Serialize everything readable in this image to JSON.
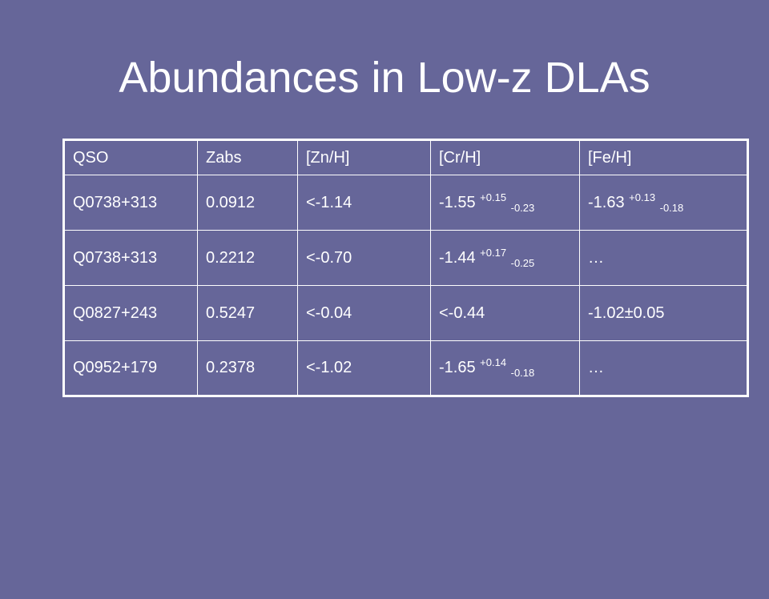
{
  "slide": {
    "title": "Abundances in Low-z DLAs"
  },
  "table": {
    "headers": [
      "QSO",
      "Zabs",
      "[Zn/H]",
      "[Cr/H]",
      "[Fe/H]"
    ],
    "rows": [
      {
        "qso": "Q0738+313",
        "zabs": "0.0912",
        "zn_h": "<-1.14",
        "cr_h": {
          "base": "-1.55",
          "sup": "+0.15",
          "sub": "-0.23"
        },
        "fe_h": {
          "base": "-1.63",
          "sup": "+0.13",
          "sub": "-0.18"
        }
      },
      {
        "qso": "Q0738+313",
        "zabs": "0.2212",
        "zn_h": "<-0.70",
        "cr_h": {
          "base": "-1.44",
          "sup": "+0.17",
          "sub": "-0.25"
        },
        "fe_h": {
          "base": "…"
        }
      },
      {
        "qso": "Q0827+243",
        "zabs": "0.5247",
        "zn_h": "<-0.04",
        "cr_h": {
          "base": "<-0.44"
        },
        "fe_h": {
          "base": "-1.02±0.05"
        }
      },
      {
        "qso": "Q0952+179",
        "zabs": "0.2378",
        "zn_h": "<-1.02",
        "cr_h": {
          "base": "-1.65",
          "sup": "+0.14",
          "sub": "-0.18"
        },
        "fe_h": {
          "base": "…"
        }
      }
    ]
  }
}
